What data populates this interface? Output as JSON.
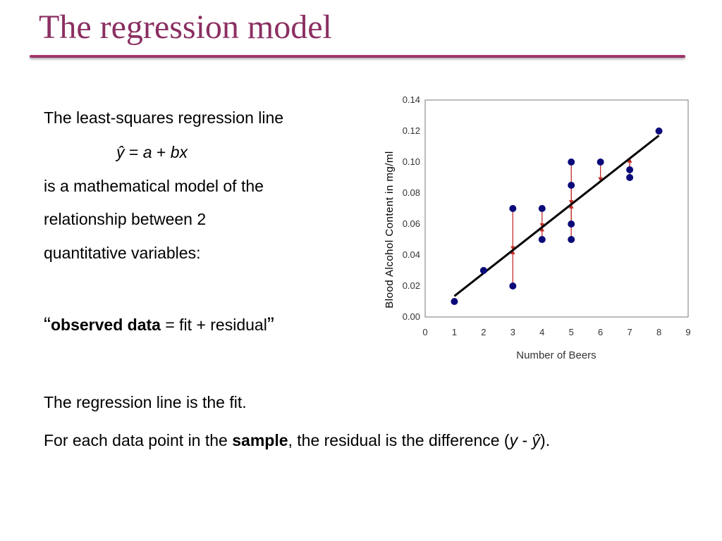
{
  "slide": {
    "title": "The regression model",
    "text": {
      "line1": "The least-squares regression line",
      "equation": {
        "yhat": "ŷ",
        "eq": " = ",
        "a": "a",
        "plus": " + ",
        "bx": "bx"
      },
      "line3": "is a mathematical model of the",
      "line4": "relationship between 2",
      "line5": "quantitative variables:",
      "quote": {
        "open": "“",
        "observed": "observed data",
        "rest": " = fit + residual",
        "close": "”"
      },
      "fit_line": "The regression line is the fit.",
      "residual": {
        "part1": "For each data point in the ",
        "sample": "sample",
        "part2": ", the residual is the difference (",
        "y": "y",
        "minus": " - ",
        "yhat": "ŷ",
        "part3": ")."
      }
    }
  },
  "colors": {
    "title": "#8b2f62",
    "rule": "#a0336a",
    "points": "#0a0a7a",
    "residual_arrows": "#c0302a",
    "regression_line": "#000000"
  },
  "chart_data": {
    "type": "scatter",
    "xlabel": "Number of Beers",
    "ylabel": "Blood Alcohol Content in mg/ml",
    "xlim": [
      0,
      9
    ],
    "ylim": [
      0,
      0.14
    ],
    "x_ticks": [
      "0",
      "1",
      "2",
      "3",
      "4",
      "5",
      "6",
      "7",
      "8",
      "9"
    ],
    "y_ticks": [
      "0.00",
      "0.02",
      "0.04",
      "0.06",
      "0.08",
      "0.10",
      "0.12",
      "0.14"
    ],
    "grid": false,
    "legend": "none",
    "points": [
      {
        "x": 1,
        "y": 0.01
      },
      {
        "x": 2,
        "y": 0.03
      },
      {
        "x": 3,
        "y": 0.07
      },
      {
        "x": 3,
        "y": 0.02
      },
      {
        "x": 4,
        "y": 0.07
      },
      {
        "x": 4,
        "y": 0.05
      },
      {
        "x": 5,
        "y": 0.1
      },
      {
        "x": 5,
        "y": 0.085
      },
      {
        "x": 5,
        "y": 0.06
      },
      {
        "x": 5,
        "y": 0.05
      },
      {
        "x": 6,
        "y": 0.1
      },
      {
        "x": 7,
        "y": 0.095
      },
      {
        "x": 7,
        "y": 0.09
      },
      {
        "x": 8,
        "y": 0.12
      }
    ],
    "regression_line": {
      "intercept": -0.0013,
      "slope": 0.0148,
      "x_range": [
        1,
        8
      ]
    },
    "residuals_shown": true
  }
}
